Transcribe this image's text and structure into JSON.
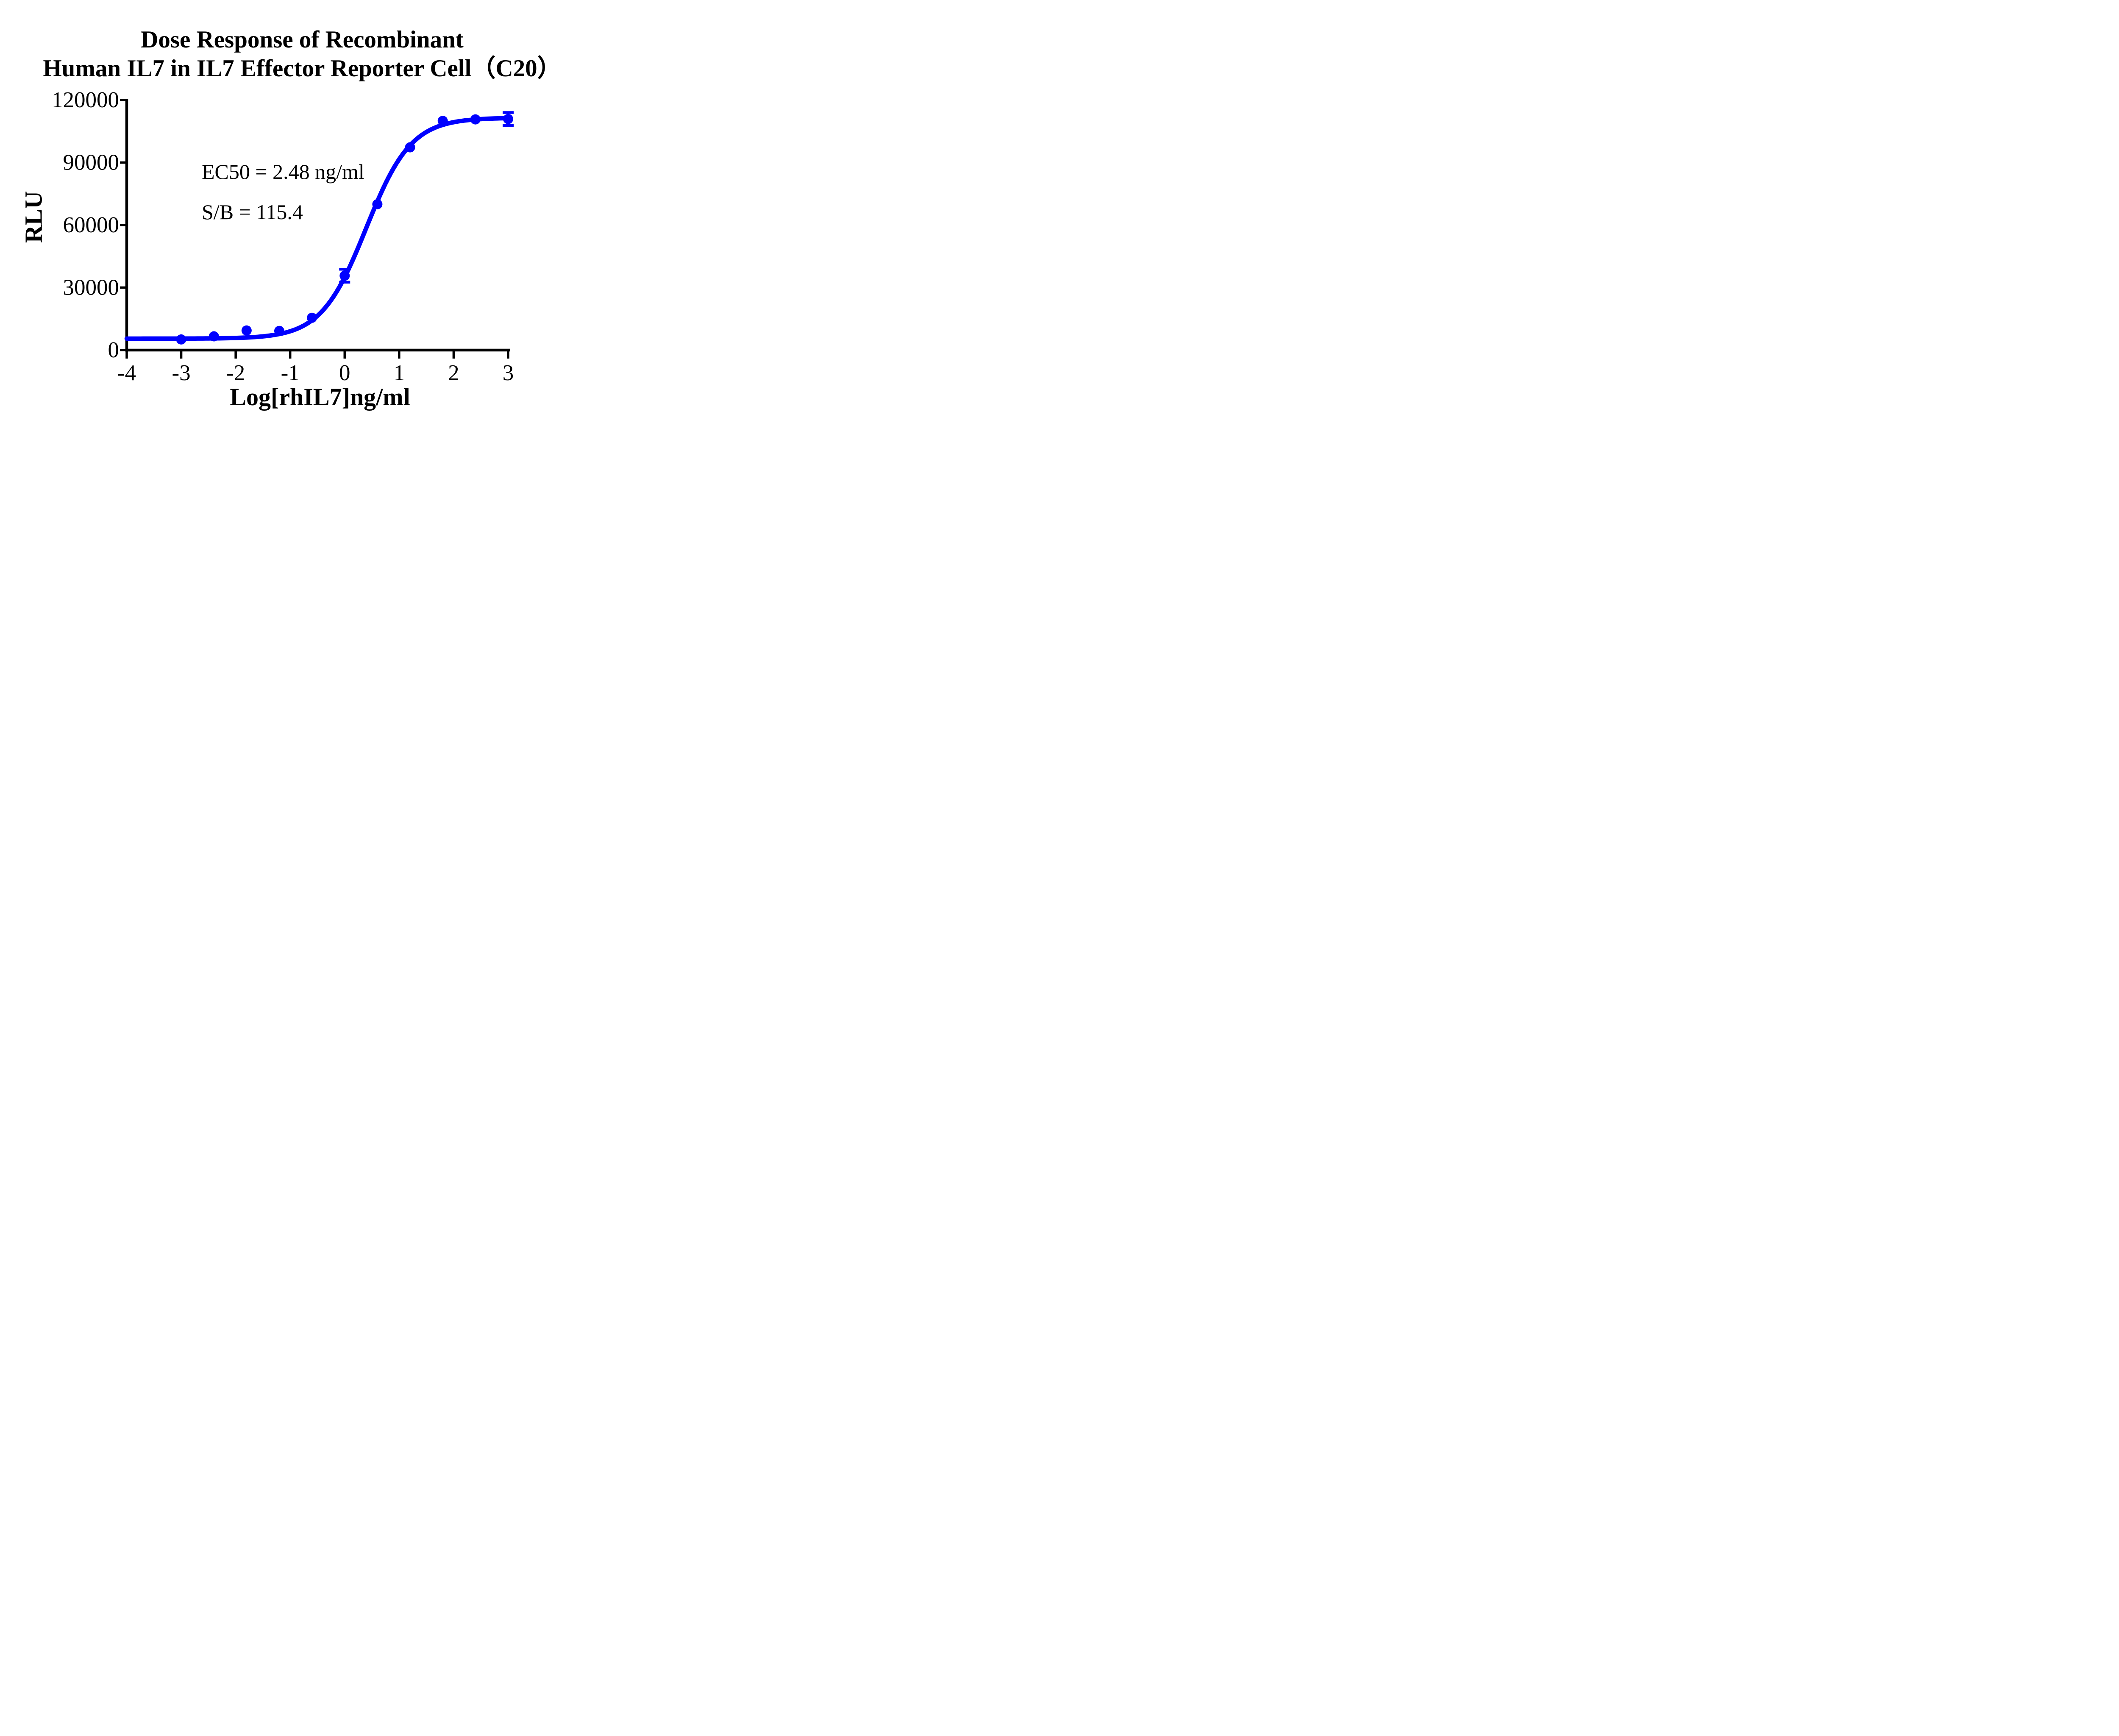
{
  "title": {
    "line1": "Dose Response of Recombinant",
    "line2": "Human IL7 in IL7 Effector Reporter Cell（C20）"
  },
  "annotation": {
    "line1": "EC50 = 2.48 ng/ml",
    "line2": "S/B = 115.4"
  },
  "colors": {
    "series": "#0000FF",
    "axis": "#000000",
    "background": "#FFFFFF"
  },
  "chart_data": {
    "type": "scatter",
    "title": "Dose Response of Recombinant Human IL7 in IL7 Effector Reporter Cell（C20）",
    "xlabel": "Log[rhIL7]ng/ml",
    "ylabel": "RLU",
    "xlim": [
      -4,
      3
    ],
    "ylim": [
      0,
      120000
    ],
    "x_ticks": [
      -4,
      -3,
      -2,
      -1,
      0,
      1,
      2,
      3
    ],
    "y_ticks": [
      0,
      30000,
      60000,
      90000,
      120000
    ],
    "grid": false,
    "legend": "none",
    "annotations": [
      "EC50 = 2.48 ng/ml",
      "S/B = 115.4"
    ],
    "series": [
      {
        "name": "rhIL7",
        "color": "#0000FF",
        "marker": "circle",
        "points": [
          {
            "x": -3.0,
            "y": 5100,
            "sd": null
          },
          {
            "x": -2.4,
            "y": 6600,
            "sd": null
          },
          {
            "x": -1.8,
            "y": 9400,
            "sd": null
          },
          {
            "x": -1.2,
            "y": 9200,
            "sd": null
          },
          {
            "x": -0.6,
            "y": 15500,
            "sd": null
          },
          {
            "x": 0.0,
            "y": 35700,
            "sd": 3100
          },
          {
            "x": 0.6,
            "y": 70000,
            "sd": null
          },
          {
            "x": 1.2,
            "y": 97300,
            "sd": null
          },
          {
            "x": 1.8,
            "y": 110000,
            "sd": null
          },
          {
            "x": 2.4,
            "y": 110700,
            "sd": null
          },
          {
            "x": 3.0,
            "y": 110900,
            "sd": 3100
          }
        ]
      }
    ],
    "fit": {
      "model": "4PL",
      "bottom_rlu": 5500,
      "top_rlu": 111500,
      "hill": 1.05,
      "ec50_ng_per_ml": 2.48,
      "curve_x_range": [
        -4,
        3
      ]
    }
  }
}
